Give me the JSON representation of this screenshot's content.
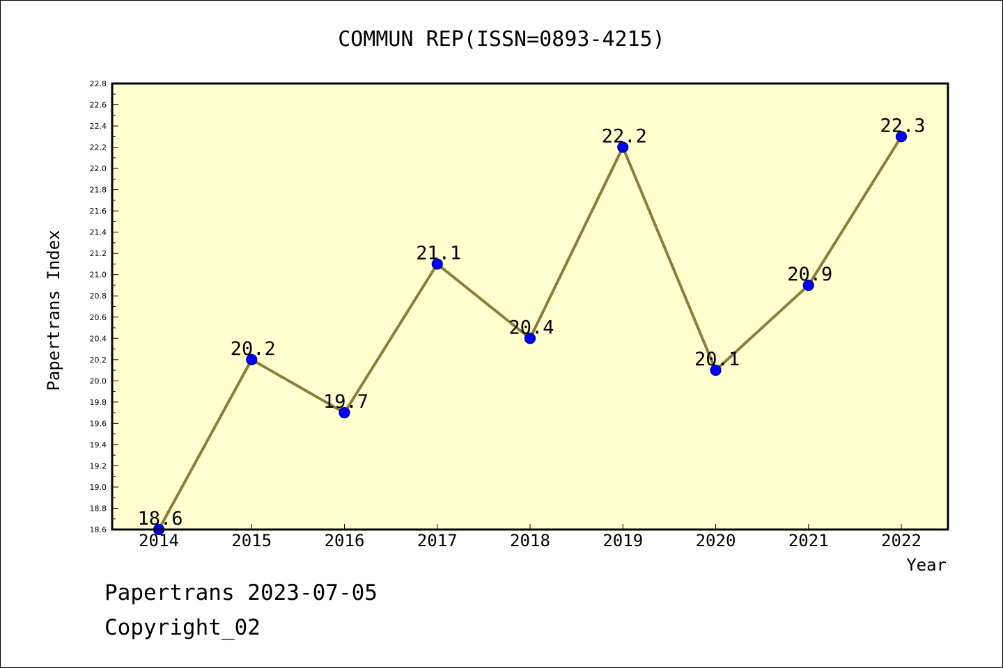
{
  "chart_data": {
    "type": "line",
    "title": "COMMUN REP(ISSN=0893-4215)",
    "xlabel": "Year",
    "ylabel": "Papertrans Index",
    "categories": [
      "2014",
      "2015",
      "2016",
      "2017",
      "2018",
      "2019",
      "2020",
      "2021",
      "2022"
    ],
    "values": [
      18.6,
      20.2,
      19.7,
      21.1,
      20.4,
      22.2,
      20.1,
      20.9,
      22.3
    ],
    "data_labels": [
      "18.6",
      "20.2",
      "19.7",
      "21.1",
      "20.4",
      "22.2",
      "20.1",
      "20.9",
      "22.3"
    ],
    "ylim": [
      18.6,
      22.8
    ],
    "yticks": [
      "18.6",
      "18.8",
      "19.0",
      "19.2",
      "19.4",
      "19.6",
      "19.8",
      "20.0",
      "20.2",
      "20.4",
      "20.6",
      "20.8",
      "21.0",
      "21.2",
      "21.4",
      "21.6",
      "21.8",
      "22.0",
      "22.2",
      "22.4",
      "22.6",
      "22.8"
    ],
    "grid": false,
    "colors": {
      "plot_background": "#ffffd0",
      "line": "#8b7d3a",
      "marker": "#0000ff"
    }
  },
  "footer": {
    "date_text": "Papertrans 2023-07-05",
    "copyright_text": "Copyright_02"
  }
}
